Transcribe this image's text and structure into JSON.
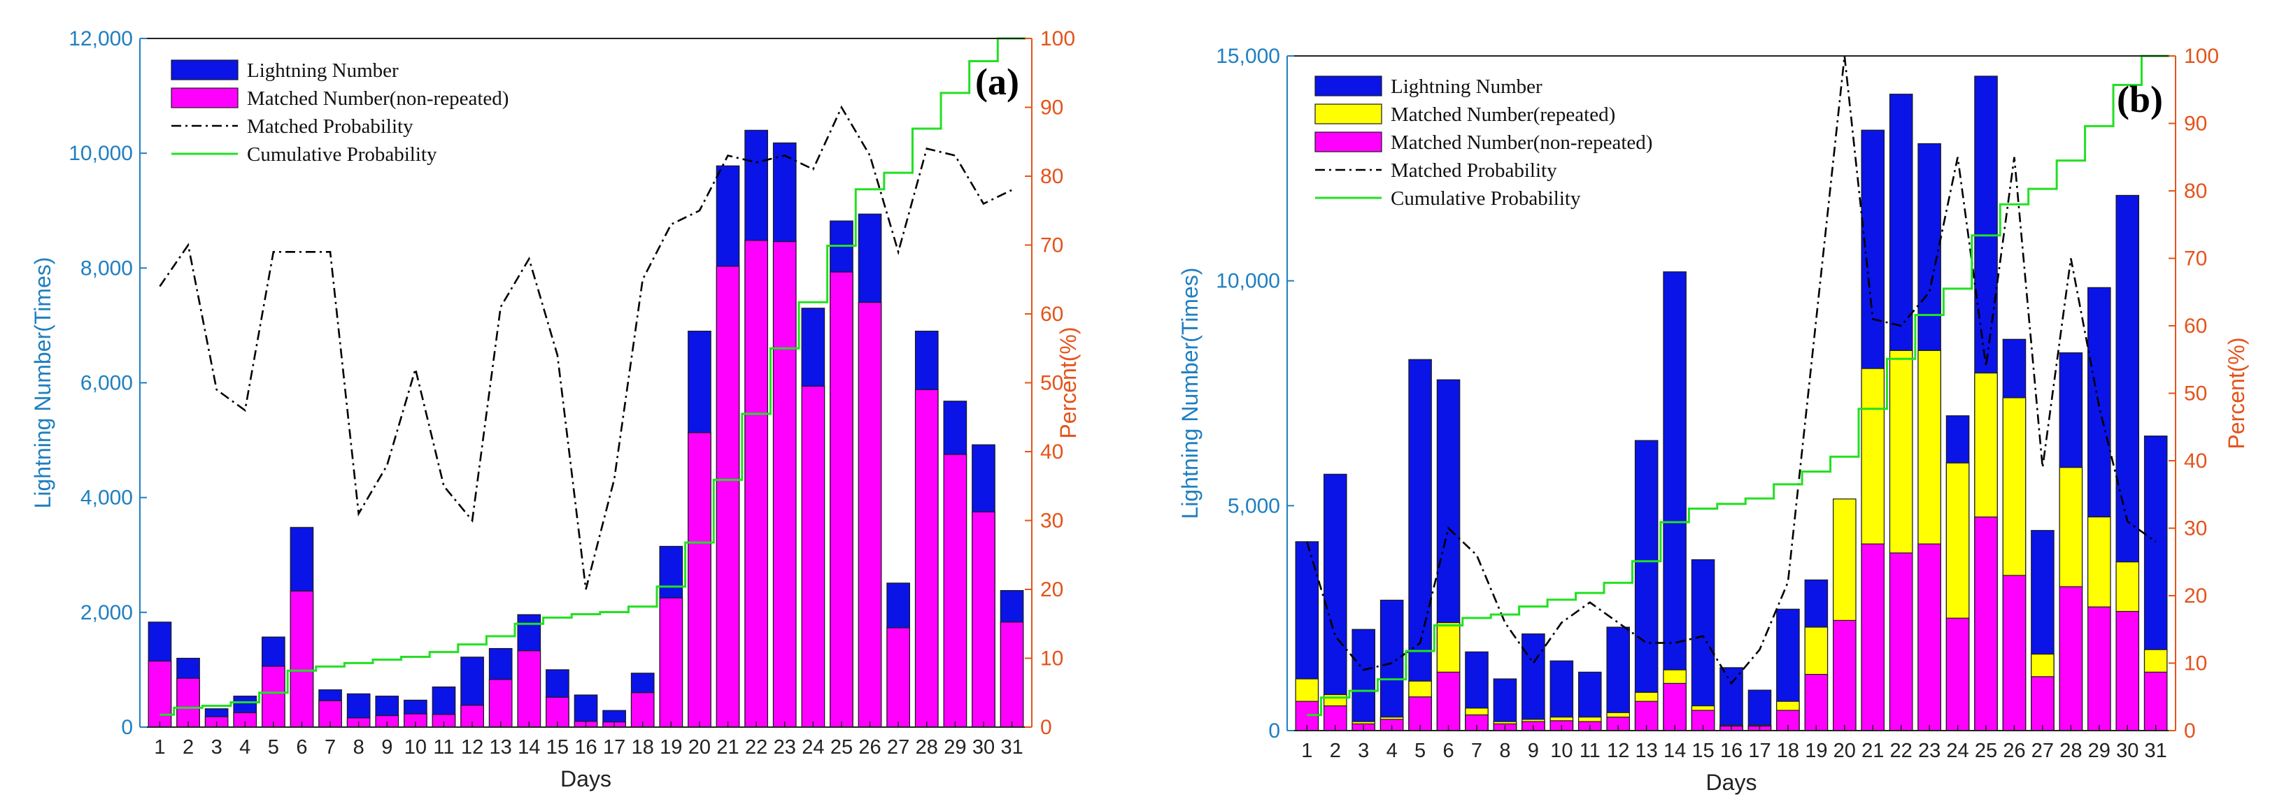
{
  "chart_data": [
    {
      "type": "bar",
      "panel_label": "(a)",
      "xlabel": "Days",
      "ylabel": "Lightning Number(Times)",
      "y2label": "Percent(%)",
      "ylim": [
        0,
        12000
      ],
      "y_ticks": [
        "0",
        "2,000",
        "4,000",
        "6,000",
        "8,000",
        "10,000",
        "12,000"
      ],
      "y2lim": [
        0,
        100
      ],
      "y2_ticks": [
        "0",
        "10",
        "20",
        "30",
        "40",
        "50",
        "60",
        "70",
        "80",
        "90",
        "100"
      ],
      "categories": [
        "1",
        "2",
        "3",
        "4",
        "5",
        "6",
        "7",
        "8",
        "9",
        "10",
        "11",
        "12",
        "13",
        "14",
        "15",
        "16",
        "17",
        "18",
        "19",
        "20",
        "21",
        "22",
        "23",
        "24",
        "25",
        "26",
        "27",
        "28",
        "29",
        "30",
        "31"
      ],
      "grid": false,
      "legend_position": "top-left",
      "series": [
        {
          "name": "Lightning Number",
          "kind": "bar",
          "axis": "left",
          "color": "#0a14e6",
          "values": [
            1830,
            1200,
            320,
            540,
            1570,
            3480,
            650,
            580,
            540,
            470,
            700,
            1220,
            1370,
            1960,
            1000,
            560,
            290,
            940,
            3150,
            6900,
            9780,
            10400,
            10180,
            7300,
            8820,
            8940,
            2510,
            6900,
            5680,
            4920,
            2380
          ]
        },
        {
          "name": "Matched Number(non-repeated)",
          "kind": "bar",
          "axis": "left",
          "color": "#ff00ff",
          "values": [
            1150,
            850,
            180,
            250,
            1060,
            2370,
            460,
            160,
            200,
            230,
            220,
            380,
            830,
            1330,
            520,
            100,
            90,
            600,
            2250,
            5130,
            8030,
            8480,
            8460,
            5940,
            7930,
            7400,
            1730,
            5880,
            4750,
            3750,
            1830
          ]
        },
        {
          "name": "Matched Probability",
          "kind": "line",
          "axis": "right",
          "color": "#000000",
          "values": [
            64,
            70,
            49,
            46,
            69,
            69,
            69,
            31,
            38,
            52,
            35,
            30,
            61,
            68,
            54,
            20,
            36,
            65,
            73,
            75,
            83,
            82,
            83,
            81,
            90,
            83,
            69,
            84,
            83,
            76,
            78
          ]
        },
        {
          "name": "Cumulative Probability",
          "kind": "step",
          "axis": "right",
          "color": "#22e022",
          "values": [
            1.8,
            2.8,
            3.1,
            3.6,
            5.0,
            8.2,
            8.8,
            9.3,
            9.8,
            10.2,
            10.9,
            12.0,
            13.2,
            15.0,
            15.9,
            16.4,
            16.7,
            17.5,
            20.4,
            26.8,
            35.9,
            45.5,
            55.0,
            61.7,
            69.9,
            78.1,
            80.5,
            86.9,
            92.1,
            96.7,
            100
          ]
        }
      ]
    },
    {
      "type": "bar",
      "panel_label": "(b)",
      "xlabel": "Days",
      "ylabel": "Lightning Number(Times)",
      "y2label": "Percent(%)",
      "ylim": [
        0,
        15000
      ],
      "y_ticks": [
        "0",
        "5,000",
        "10,000",
        "15,000"
      ],
      "y2lim": [
        0,
        100
      ],
      "y2_ticks": [
        "0",
        "10",
        "20",
        "30",
        "40",
        "50",
        "60",
        "70",
        "80",
        "90",
        "100"
      ],
      "categories": [
        "1",
        "2",
        "3",
        "4",
        "5",
        "6",
        "7",
        "8",
        "9",
        "10",
        "11",
        "12",
        "13",
        "14",
        "15",
        "16",
        "17",
        "18",
        "19",
        "20",
        "21",
        "22",
        "23",
        "24",
        "25",
        "26",
        "27",
        "28",
        "29",
        "30",
        "31"
      ],
      "grid": false,
      "legend_position": "top-left",
      "series": [
        {
          "name": "Lightning Number",
          "kind": "bar",
          "axis": "left",
          "color": "#0a14e6",
          "values": [
            4200,
            5700,
            2250,
            2900,
            8250,
            7800,
            1750,
            1150,
            2150,
            1550,
            1300,
            2300,
            6450,
            10200,
            3800,
            1400,
            900,
            2700,
            3350,
            5100,
            13350,
            14150,
            13050,
            7000,
            14550,
            8700,
            4450,
            8400,
            9850,
            11900,
            6550
          ]
        },
        {
          "name": "Matched Number(repeated)",
          "kind": "bar",
          "axis": "left",
          "color": "#ffff00",
          "values": [
            1150,
            800,
            200,
            300,
            1100,
            2400,
            500,
            200,
            250,
            300,
            300,
            400,
            850,
            1350,
            550,
            120,
            120,
            650,
            2300,
            5150,
            8050,
            8450,
            8450,
            5950,
            7950,
            7400,
            1700,
            5850,
            4750,
            3750,
            1800
          ]
        },
        {
          "name": "Matched Number(non-repeated)",
          "kind": "bar",
          "axis": "left",
          "color": "#ff00ff",
          "values": [
            650,
            550,
            150,
            250,
            750,
            1300,
            350,
            150,
            200,
            220,
            200,
            300,
            650,
            1050,
            450,
            100,
            100,
            450,
            1250,
            2450,
            4150,
            3950,
            4150,
            2500,
            4750,
            3450,
            1200,
            3200,
            2750,
            2650,
            1300
          ]
        },
        {
          "name": "Matched Probability",
          "kind": "line",
          "axis": "right",
          "color": "#000000",
          "values": [
            28,
            14,
            9,
            10,
            13,
            30,
            26,
            16,
            10,
            16,
            19,
            16,
            13,
            13,
            14,
            7,
            12,
            22,
            61,
            100,
            61,
            60,
            65,
            85,
            54,
            85,
            39,
            70,
            48,
            31,
            28
          ]
        },
        {
          "name": "Cumulative Probability",
          "kind": "step",
          "axis": "right",
          "color": "#22e022",
          "values": [
            2.3,
            4.9,
            5.9,
            7.6,
            11.8,
            15.6,
            16.7,
            17.2,
            18.4,
            19.4,
            20.4,
            21.9,
            25.1,
            30.9,
            32.9,
            33.6,
            34.4,
            36.5,
            38.4,
            40.6,
            47.7,
            55.1,
            61.6,
            65.5,
            73.4,
            78.0,
            80.3,
            84.5,
            89.6,
            95.7,
            100
          ]
        }
      ]
    }
  ]
}
